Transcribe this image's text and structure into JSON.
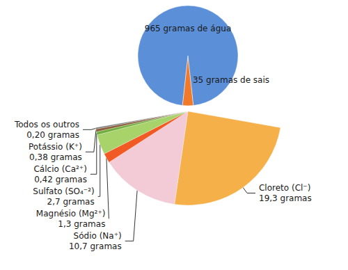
{
  "chart_data": [
    {
      "type": "pie",
      "values": [
        35,
        965
      ],
      "value_labels": [
        "35 gramas de sais",
        "965 gramas de água"
      ],
      "colors": [
        "#f07a2a",
        "#5b8fd8"
      ],
      "data_labels": true
    },
    {
      "type": "pie",
      "categories": [
        "Cloreto (Cl⁻)",
        "Sódio (Na⁺)",
        "Magnésio (Mg²⁺)",
        "Sulfato (SO₄⁻²)",
        "Cálcio (Ca²⁺)",
        "Potássio (K⁺)",
        "Todos os outros"
      ],
      "values": [
        19.3,
        10.7,
        1.3,
        2.7,
        0.42,
        0.38,
        0.2
      ],
      "value_labels": [
        "19,3 gramas",
        "10,7 gramas",
        "1,3 gramas",
        "2,7 gramas",
        "0,42 gramas",
        "0,38 gramas",
        "0,20 gramas"
      ],
      "colors": [
        "#f6b04a",
        "#f2cbd6",
        "#f15a24",
        "#a8d26a",
        "#6fae3c",
        "#8b5e3c",
        "#777777"
      ],
      "data_labels": true
    }
  ]
}
